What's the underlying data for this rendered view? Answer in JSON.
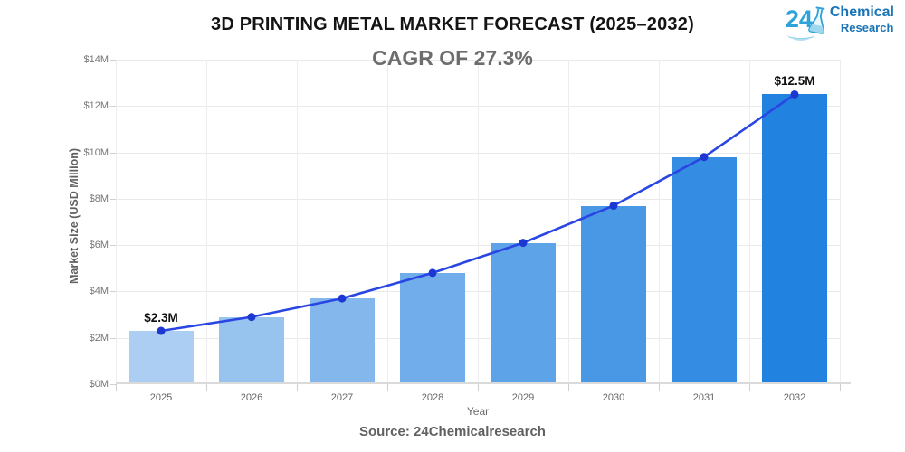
{
  "header": {
    "title": "3D PRINTING METAL MARKET FORECAST (2025–2032)",
    "subtitle": "CAGR OF 27.3%",
    "logo": {
      "number": "24",
      "line1": "Chemical",
      "line2": "Research"
    }
  },
  "chart_data": {
    "type": "bar",
    "overlay": "line",
    "title": "3D PRINTING METAL MARKET FORECAST (2025–2032)",
    "subtitle": "CAGR OF 27.3%",
    "categories": [
      "2025",
      "2026",
      "2027",
      "2028",
      "2029",
      "2030",
      "2031",
      "2032"
    ],
    "values": [
      2.3,
      2.9,
      3.7,
      4.8,
      6.1,
      7.7,
      9.8,
      12.5
    ],
    "unit": "USD Million",
    "xlabel": "Year",
    "ylabel": "Market Size (USD Million)",
    "ylim": [
      0,
      14
    ],
    "ytick_step": 2,
    "ytick_labels": [
      "$0M",
      "$2M",
      "$4M",
      "$6M",
      "$8M",
      "$10M",
      "$12M",
      "$14M"
    ],
    "grid": true,
    "legend": "none",
    "bar_colors": [
      "#abcef2",
      "#97c3ef",
      "#84b8ed",
      "#70adea",
      "#5ca3e8",
      "#4898e5",
      "#358de3",
      "#2182e0"
    ],
    "line_color": "#2946e3",
    "point_color": "#1d38d2",
    "value_labels": [
      {
        "index": 0,
        "text": "$2.3M"
      },
      {
        "index": 7,
        "text": "$12.5M"
      }
    ]
  },
  "footer": {
    "source": "Source: 24Chemicalresearch"
  }
}
